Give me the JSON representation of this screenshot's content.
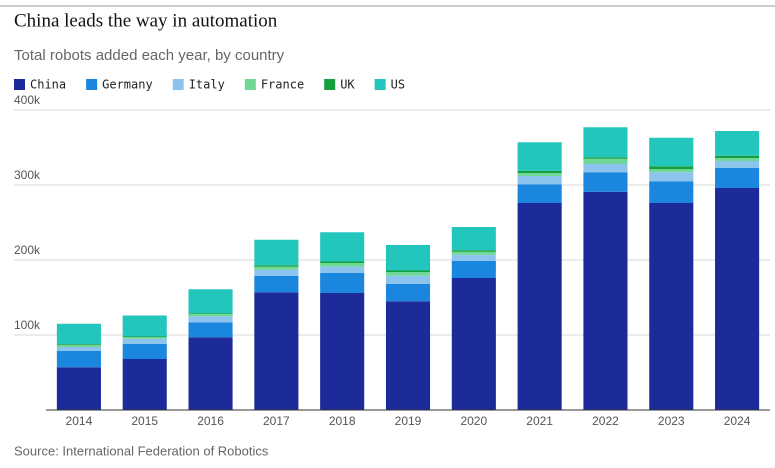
{
  "chart_data": {
    "type": "stacked_bar",
    "title": "China leads the way in automation",
    "subtitle": "Total robots added each year, by country",
    "source": "Source: International Federation of Robotics",
    "categories": [
      "2014",
      "2015",
      "2016",
      "2017",
      "2018",
      "2019",
      "2020",
      "2021",
      "2022",
      "2023",
      "2024"
    ],
    "series": [
      {
        "name": "China",
        "color": "#1c2a9a",
        "values": [
          57000,
          68000,
          97000,
          157000,
          156000,
          145000,
          176000,
          276000,
          291000,
          276000,
          296000
        ]
      },
      {
        "name": "Germany",
        "color": "#1a86de",
        "values": [
          22000,
          20000,
          20000,
          22000,
          27000,
          23000,
          23000,
          25000,
          26000,
          29000,
          27000
        ]
      },
      {
        "name": "Italy",
        "color": "#8cc4ee",
        "values": [
          5000,
          7000,
          8000,
          8000,
          8000,
          11000,
          8000,
          11000,
          11000,
          12000,
          9000
        ]
      },
      {
        "name": "France",
        "color": "#6fd896",
        "values": [
          3000,
          2000,
          3000,
          4000,
          5000,
          5000,
          4000,
          4000,
          7000,
          4000,
          4000
        ]
      },
      {
        "name": "UK",
        "color": "#14a03c",
        "values": [
          1000,
          1000,
          1000,
          2000,
          2000,
          2000,
          2000,
          3000,
          2000,
          4000,
          3000
        ]
      },
      {
        "name": "US",
        "color": "#22c6bd",
        "values": [
          27000,
          28000,
          32000,
          34000,
          39000,
          34000,
          31000,
          38000,
          40000,
          38000,
          33000
        ]
      }
    ],
    "ylim": [
      0,
      400000
    ],
    "yticks": [
      {
        "value": 100000,
        "label": "100k"
      },
      {
        "value": 200000,
        "label": "200k"
      },
      {
        "value": 300000,
        "label": "300k"
      },
      {
        "value": 400000,
        "label": "400k"
      }
    ],
    "grid": true,
    "legend": "top-left"
  }
}
